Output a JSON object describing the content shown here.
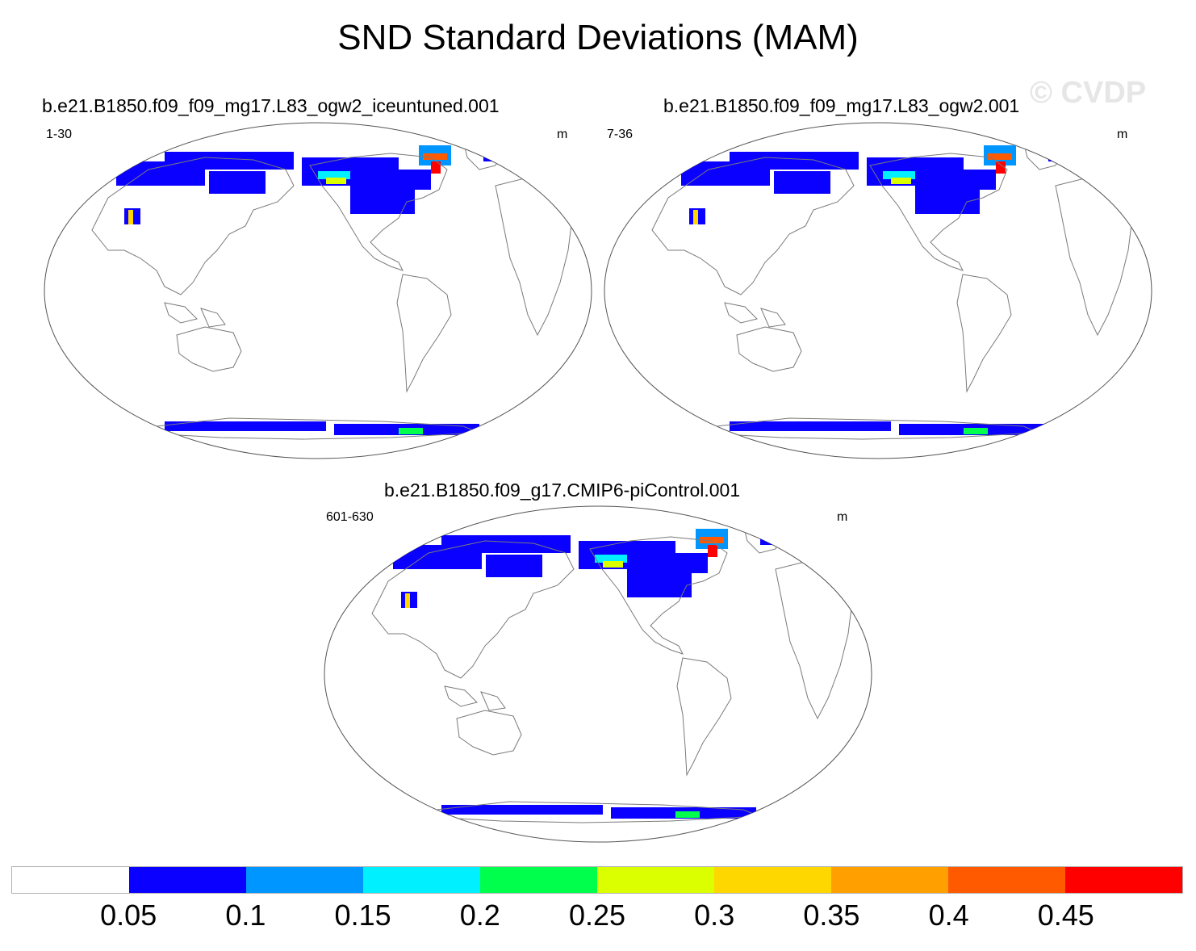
{
  "title": "SND Standard Deviations (MAM)",
  "watermark": "© CVDP",
  "units": "m",
  "panels": [
    {
      "name": "b.e21.B1850.f09_f09_mg17.L83_ogw2_iceuntuned.001",
      "years": "1-30",
      "units": "m"
    },
    {
      "name": "b.e21.B1850.f09_f09_mg17.L83_ogw2.001",
      "years": "7-36",
      "units": "m"
    },
    {
      "name": "b.e21.B1850.f09_g17.CMIP6-piControl.001",
      "years": "601-630",
      "units": "m"
    }
  ],
  "colorbar": {
    "labels": [
      "0.05",
      "0.1",
      "0.15",
      "0.2",
      "0.25",
      "0.3",
      "0.35",
      "0.4",
      "0.45"
    ],
    "colors": [
      "#ffffff",
      "#0a00ff",
      "#0096ff",
      "#00f0ff",
      "#00ff4c",
      "#dcff00",
      "#ffd700",
      "#ffa000",
      "#ff5a00",
      "#ff0000"
    ]
  },
  "colors": {
    "coast": "#7a7a7a",
    "border": "#555555"
  }
}
